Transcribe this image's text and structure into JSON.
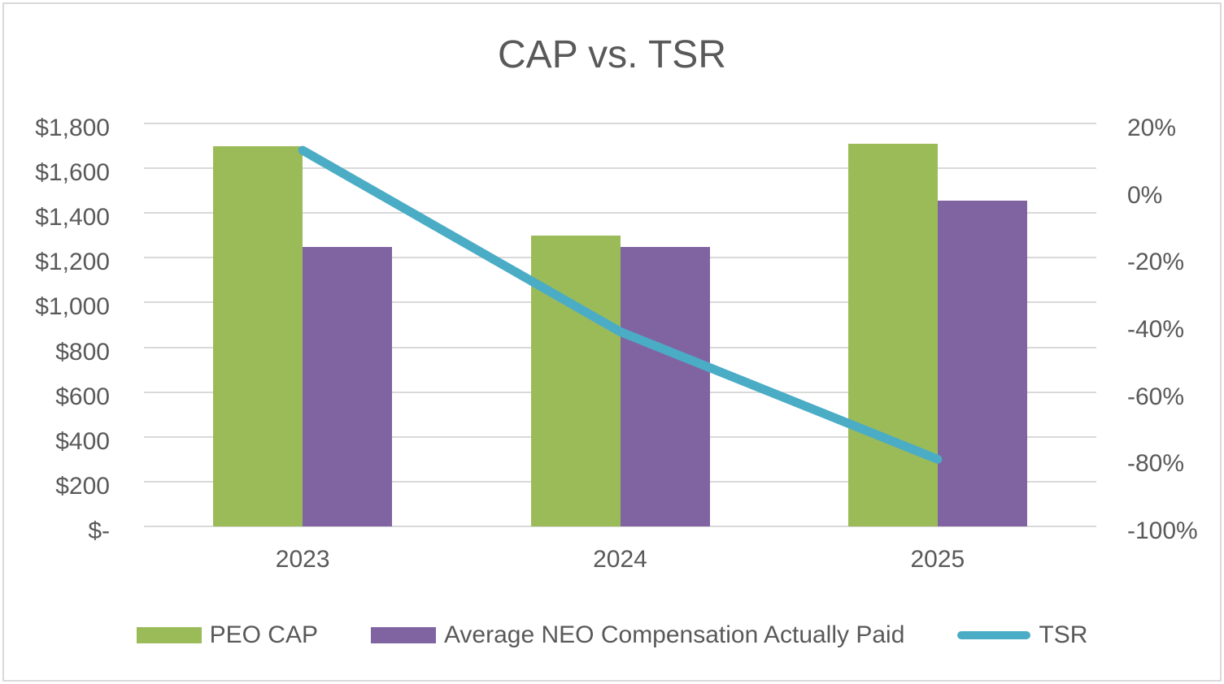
{
  "chart_data": {
    "type": "combo",
    "title": "CAP vs. TSR",
    "categories": [
      "2023",
      "2024",
      "2025"
    ],
    "series": [
      {
        "name": "PEO CAP",
        "type": "bar",
        "axis": "left",
        "color": "#9BBB59",
        "values": [
          1700,
          1300,
          1710
        ]
      },
      {
        "name": "Average NEO Compensation Actually Paid",
        "type": "bar",
        "axis": "left",
        "color": "#8064A2",
        "values": [
          1250,
          1250,
          1455
        ]
      },
      {
        "name": "TSR",
        "type": "line",
        "axis": "right",
        "color": "#4BACC6",
        "values": [
          12,
          -42,
          -80
        ]
      }
    ],
    "left_axis": {
      "min": 0,
      "max": 1800,
      "major_unit": 200,
      "tick_labels": [
        "$1,800",
        "$1,600",
        "$1,400",
        "$1,200",
        "$1,000",
        "$800",
        "$600",
        "$400",
        "$200",
        "$-"
      ]
    },
    "right_axis": {
      "min": -100,
      "max": 20,
      "major_unit": 20,
      "tick_labels": [
        "20%",
        "0%",
        "-20%",
        "-40%",
        "-60%",
        "-80%",
        "-100%"
      ]
    },
    "grid": true,
    "legend_position": "bottom"
  },
  "colors": {
    "text": "#595959",
    "gridline": "#D9D9D9",
    "border": "#D9D9D9",
    "background": "#FFFFFF"
  }
}
